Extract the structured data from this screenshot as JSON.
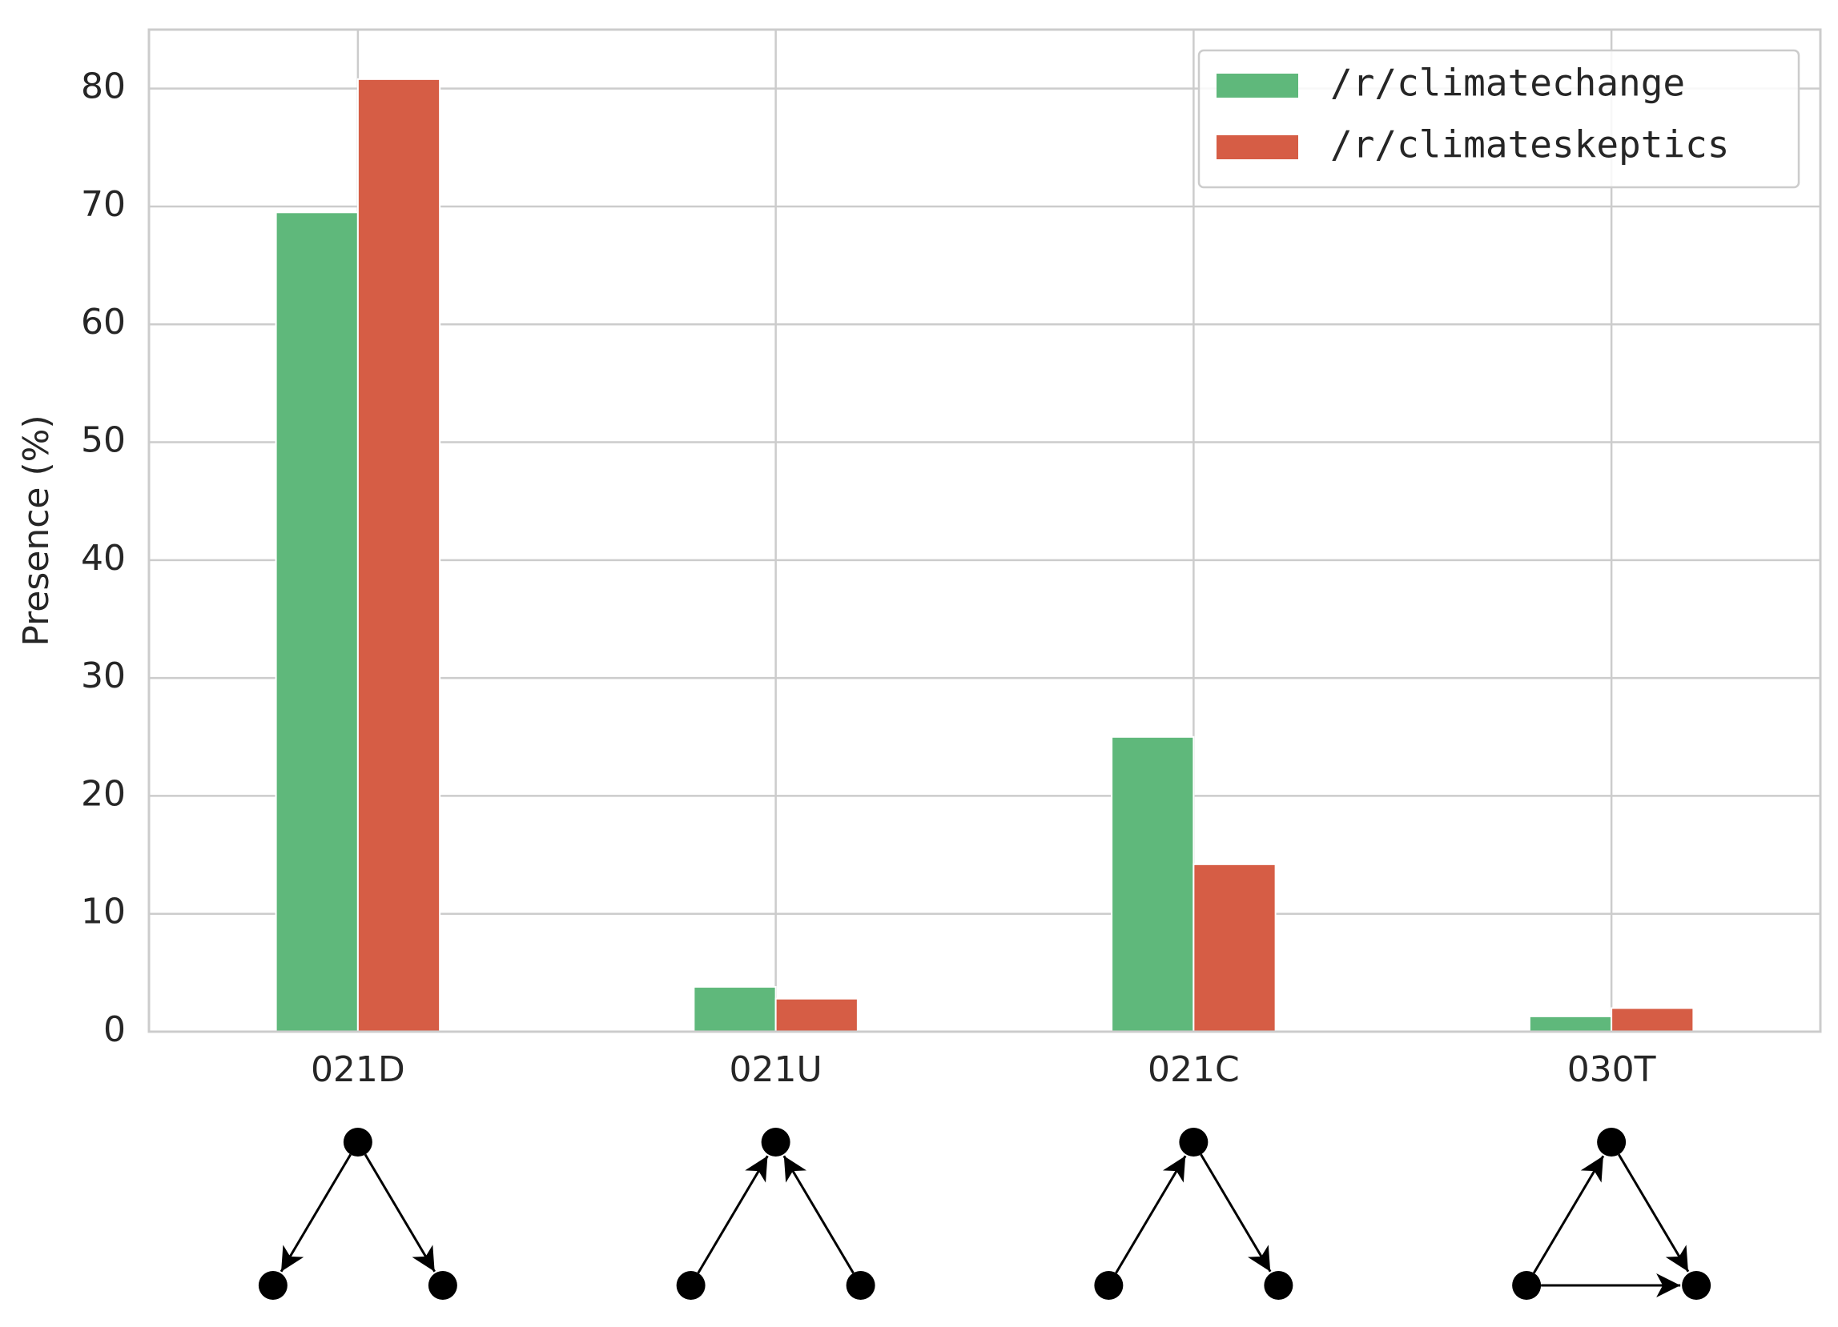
{
  "chart_data": {
    "type": "bar",
    "y_label": "Presence (%)",
    "categories": [
      "021D",
      "021U",
      "021C",
      "030T"
    ],
    "series": [
      {
        "name": "/r/climatechange",
        "color": "#5fb87b",
        "values": [
          69.5,
          3.8,
          25.0,
          1.3
        ]
      },
      {
        "name": "/r/climateskeptics",
        "color": "#d65d45",
        "values": [
          80.8,
          2.8,
          14.2,
          2.0
        ]
      }
    ],
    "ylim": [
      0,
      85
    ],
    "yticks": [
      0,
      10,
      20,
      30,
      40,
      50,
      60,
      70,
      80
    ],
    "grid": true,
    "legend": "upper right"
  }
}
